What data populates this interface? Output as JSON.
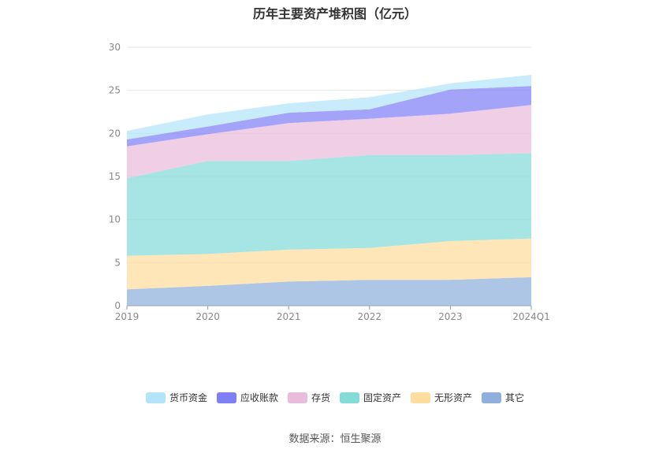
{
  "chart_data": {
    "type": "area",
    "title": "历年主要资产堆积图（亿元）",
    "categories": [
      "2019",
      "2020",
      "2021",
      "2022",
      "2023",
      "2024Q1"
    ],
    "ylim": [
      0,
      30
    ],
    "yticks": [
      0,
      5,
      10,
      15,
      20,
      25,
      30
    ],
    "grid": true,
    "legend_position": "bottom",
    "stacked": true,
    "series": [
      {
        "name": "其它",
        "color": "#8fb0dc",
        "values": [
          1.9,
          2.3,
          2.8,
          3.0,
          3.0,
          3.3
        ]
      },
      {
        "name": "无形资产",
        "color": "#ffdd9e",
        "values": [
          3.9,
          3.7,
          3.7,
          3.7,
          4.5,
          4.5
        ]
      },
      {
        "name": "固定资产",
        "color": "#84dbd8",
        "values": [
          9.0,
          10.8,
          10.3,
          10.8,
          10.0,
          9.9
        ]
      },
      {
        "name": "存货",
        "color": "#eabcdc",
        "values": [
          3.7,
          3.1,
          4.4,
          4.2,
          4.8,
          5.6
        ]
      },
      {
        "name": "应收账款",
        "color": "#8080f6",
        "values": [
          0.8,
          0.9,
          1.2,
          1.1,
          2.8,
          2.2
        ]
      },
      {
        "name": "货币资金",
        "color": "#b3e4fa",
        "values": [
          1.0,
          1.4,
          1.1,
          1.4,
          0.7,
          1.3
        ]
      }
    ],
    "legend_order": [
      "货币资金",
      "应收账款",
      "存货",
      "固定资产",
      "无形资产",
      "其它"
    ],
    "source": "数据来源：恒生聚源"
  }
}
